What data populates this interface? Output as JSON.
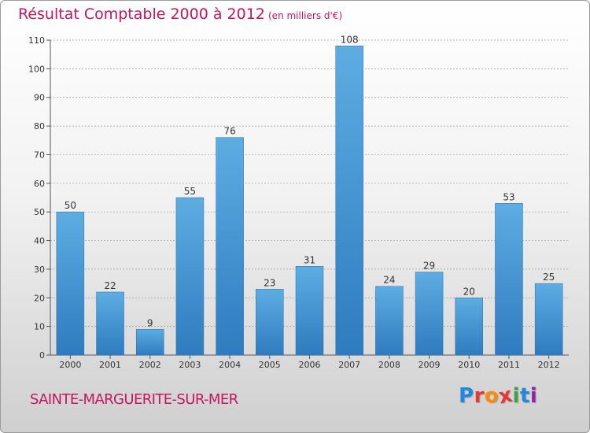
{
  "header": {
    "title": "Résultat Comptable 2000 à 2012",
    "subtitle": "(en milliers d'€)"
  },
  "footer": {
    "commune": "SAINTE-MARGUERITE-SUR-MER",
    "logo_text": "Proxiti",
    "logo_letters": [
      {
        "ch": "P",
        "color": "#1e88e5"
      },
      {
        "ch": "r",
        "color": "#e53935"
      },
      {
        "ch": "o",
        "color": "#fb8c00"
      },
      {
        "ch": "x",
        "color": "#e53935"
      },
      {
        "ch": "i",
        "color": "#43a047"
      },
      {
        "ch": "t",
        "color": "#1e88e5"
      },
      {
        "ch": "i",
        "color": "#8e24aa"
      }
    ]
  },
  "colors": {
    "accent": "#c2185b",
    "bar_top": "#5dade2",
    "bar_bottom": "#2e7bbf",
    "grid": "#9a9a9a"
  },
  "chart_data": {
    "type": "bar",
    "categories": [
      "2000",
      "2001",
      "2002",
      "2003",
      "2004",
      "2005",
      "2006",
      "2007",
      "2008",
      "2009",
      "2010",
      "2011",
      "2012"
    ],
    "values": [
      50,
      22,
      9,
      55,
      76,
      23,
      31,
      108,
      24,
      29,
      20,
      53,
      25
    ],
    "ylim": [
      0,
      110
    ],
    "yticks": [
      0,
      10,
      20,
      30,
      40,
      50,
      60,
      70,
      80,
      90,
      100,
      110
    ],
    "grid": "horizontal dashed",
    "legend": "none"
  }
}
